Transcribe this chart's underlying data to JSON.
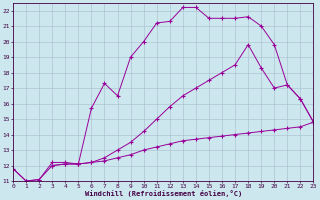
{
  "xlabel": "Windchill (Refroidissement éolien,°C)",
  "background_color": "#cce8ee",
  "line_color": "#990099",
  "xlim": [
    0,
    23
  ],
  "ylim": [
    11,
    22.5
  ],
  "xticks": [
    0,
    1,
    2,
    3,
    4,
    5,
    6,
    7,
    8,
    9,
    10,
    11,
    12,
    13,
    14,
    15,
    16,
    17,
    18,
    19,
    20,
    21,
    22,
    23
  ],
  "yticks": [
    11,
    12,
    13,
    14,
    15,
    16,
    17,
    18,
    19,
    20,
    21,
    22
  ],
  "grid_color": "#aabbcc",
  "line1_x": [
    0,
    1,
    2,
    3,
    4,
    5,
    6,
    7,
    8,
    9,
    10,
    11,
    12,
    13,
    14,
    15,
    16,
    17,
    18,
    19,
    20,
    21,
    22,
    23
  ],
  "line1_y": [
    11.8,
    11.0,
    11.1,
    12.2,
    12.2,
    12.1,
    15.7,
    17.3,
    16.5,
    19.0,
    20.0,
    21.2,
    21.3,
    22.2,
    22.2,
    21.5,
    21.5,
    21.5,
    21.6,
    21.0,
    19.8,
    17.2,
    16.3,
    14.8
  ],
  "line2_x": [
    0,
    1,
    2,
    3,
    4,
    5,
    6,
    7,
    8,
    9,
    10,
    11,
    12,
    13,
    14,
    15,
    16,
    17,
    18,
    19,
    20,
    21,
    22,
    23
  ],
  "line2_y": [
    11.8,
    11.0,
    11.1,
    12.0,
    12.1,
    12.1,
    12.2,
    12.3,
    12.5,
    12.7,
    13.0,
    13.2,
    13.4,
    13.6,
    13.7,
    13.8,
    13.9,
    14.0,
    14.1,
    14.2,
    14.3,
    14.4,
    14.5,
    14.8
  ],
  "line3_x": [
    3,
    4,
    5,
    6,
    7,
    8,
    9,
    10,
    11,
    12,
    13,
    14,
    15,
    16,
    17,
    18,
    19,
    20,
    21,
    22,
    23
  ],
  "line3_y": [
    12.0,
    12.1,
    12.1,
    12.2,
    12.5,
    13.0,
    13.5,
    14.2,
    15.0,
    15.8,
    16.5,
    17.0,
    17.5,
    18.0,
    18.5,
    19.8,
    18.3,
    17.0,
    17.2,
    16.3,
    14.8
  ]
}
